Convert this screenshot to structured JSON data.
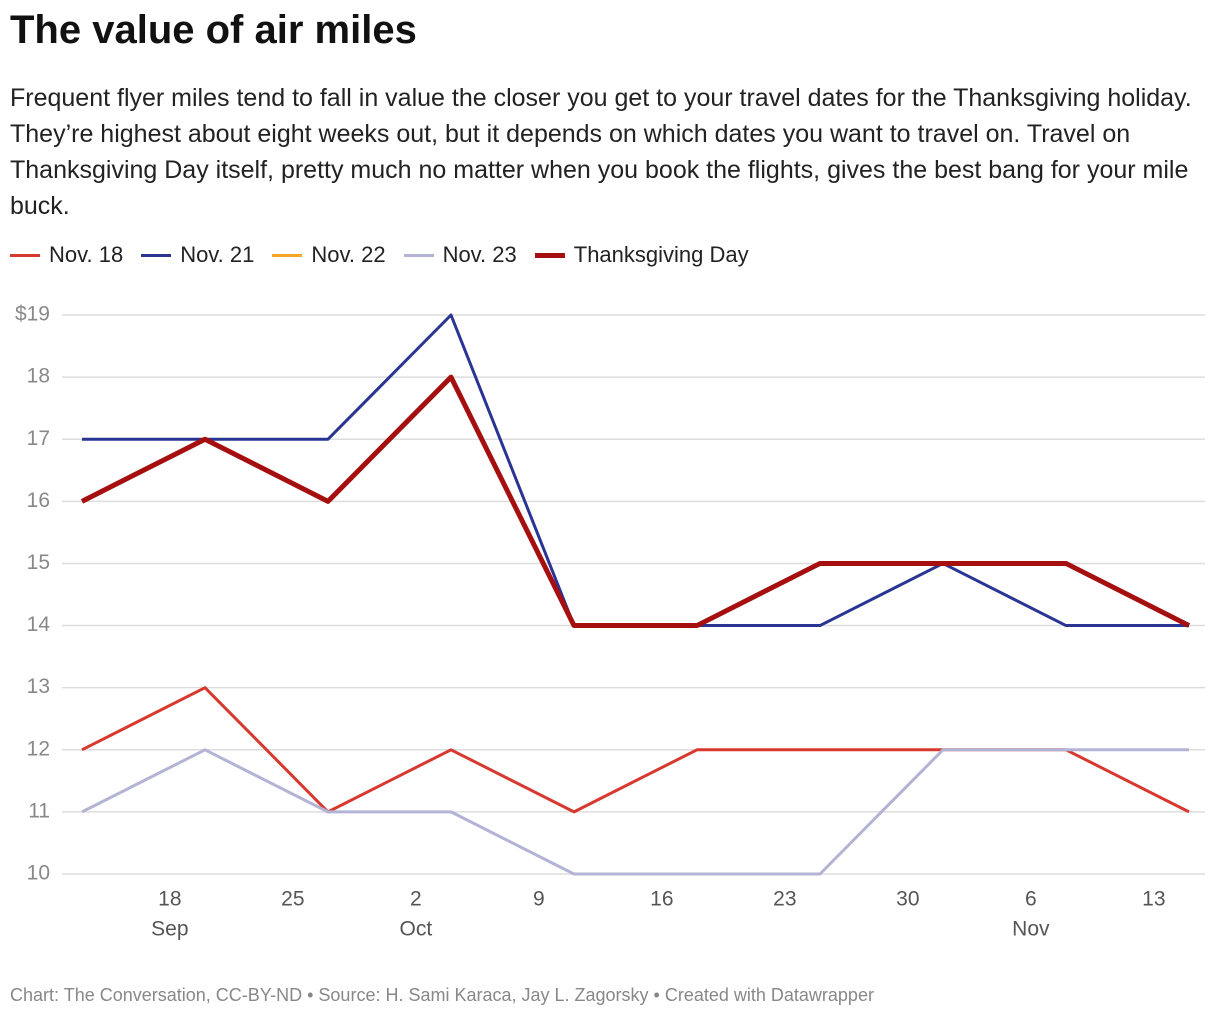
{
  "chart_data": {
    "type": "line",
    "title": "The value of air miles",
    "subtitle": "Frequent flyer miles tend to fall in value the closer you get to your travel dates for the Thanksgiving holiday. They’re highest about eight weeks out, but it depends on which dates you want to travel on. Travel on Thanksgiving Day itself, pretty much no matter when you book the flights, gives the best bang for your mile buck.",
    "x": [
      "Sep 13",
      "Sep 20",
      "Sep 27",
      "Oct 4",
      "Oct 11",
      "Oct 18",
      "Oct 25",
      "Nov 1",
      "Nov 8",
      "Nov 15"
    ],
    "series": [
      {
        "name": "Nov. 18",
        "color": "#d8392e",
        "line_width": 3,
        "values": [
          12,
          13,
          11,
          12,
          11,
          12,
          12,
          12,
          12,
          11
        ]
      },
      {
        "name": "Nov. 21",
        "color": "#2a3593",
        "line_width": 3,
        "values": [
          17,
          17,
          17,
          19,
          14,
          14,
          14,
          15,
          14,
          14
        ]
      },
      {
        "name": "Nov. 22",
        "color": "#f5a623",
        "line_width": 3,
        "values": [
          null,
          null,
          null,
          null,
          null,
          null,
          null,
          null,
          null,
          null
        ]
      },
      {
        "name": "Nov. 23",
        "color": "#b3b3d6",
        "line_width": 3,
        "values": [
          11,
          12,
          11,
          11,
          10,
          10,
          10,
          12,
          12,
          12
        ]
      },
      {
        "name": "Thanksgiving Day",
        "color": "#a50f0f",
        "line_width": 5,
        "values": [
          16,
          17,
          16,
          18,
          14,
          14,
          15,
          15,
          15,
          14
        ]
      }
    ],
    "ylim": [
      10,
      19
    ],
    "yticks": [
      10,
      11,
      12,
      13,
      14,
      15,
      16,
      17,
      18,
      {
        "value": 19,
        "label": "$19"
      }
    ],
    "xlim": [
      "Sep 13",
      "Nov 15"
    ],
    "xticks": [
      {
        "value": "Sep 18",
        "label": "18"
      },
      {
        "value": "Sep 25",
        "label": "25"
      },
      {
        "value": "Oct 2",
        "label": "2"
      },
      {
        "value": "Oct 9",
        "label": "9"
      },
      {
        "value": "Oct 16",
        "label": "16"
      },
      {
        "value": "Oct 23",
        "label": "23"
      },
      {
        "value": "Oct 30",
        "label": "30"
      },
      {
        "value": "Nov 6",
        "label": "6"
      },
      {
        "value": "Nov 13",
        "label": "13"
      }
    ],
    "month_labels": [
      {
        "value": "Sep 18",
        "label": "Sep"
      },
      {
        "value": "Oct 2",
        "label": "Oct"
      },
      {
        "value": "Nov 6",
        "label": "Nov"
      }
    ],
    "grid": true,
    "footer": "Chart: The Conversation, CC-BY-ND • Source: H. Sami Karaca, Jay L. Zagorsky • Created with Datawrapper"
  }
}
